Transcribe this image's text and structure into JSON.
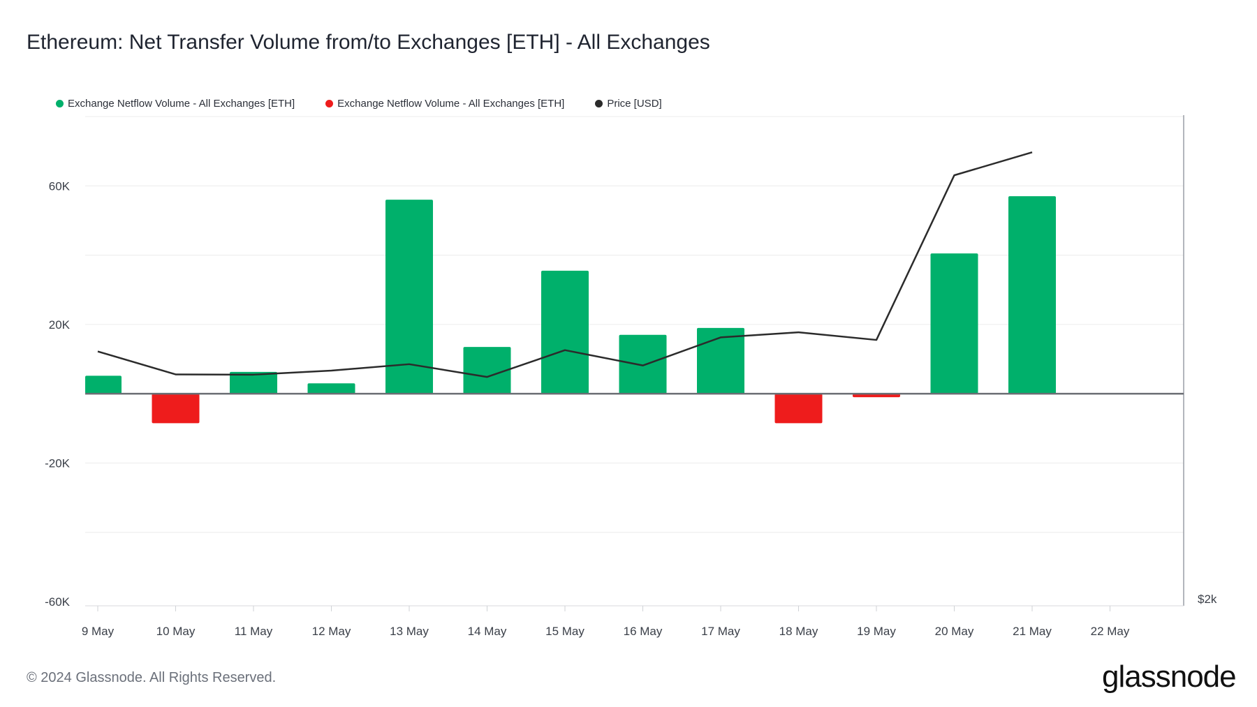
{
  "title": "Ethereum: Net Transfer Volume from/to Exchanges [ETH] - All Exchanges",
  "legend": [
    {
      "label": "Exchange Netflow Volume - All Exchanges [ETH]",
      "color": "#00b06b"
    },
    {
      "label": "Exchange Netflow Volume - All Exchanges [ETH]",
      "color": "#ee1c1c"
    },
    {
      "label": "Price [USD]",
      "color": "#2b2b2b"
    }
  ],
  "footer": {
    "copyright": "© 2024 Glassnode. All Rights Reserved.",
    "logo": "glassnode"
  },
  "chart_data": {
    "type": "bar",
    "title": "Ethereum: Net Transfer Volume from/to Exchanges [ETH] - All Exchanges",
    "xlabel": "",
    "ylabel": "",
    "categories": [
      "9 May",
      "10 May",
      "11 May",
      "12 May",
      "13 May",
      "14 May",
      "15 May",
      "16 May",
      "17 May",
      "18 May",
      "19 May",
      "20 May",
      "21 May",
      "22 May"
    ],
    "series": [
      {
        "name": "Exchange Netflow Volume - All Exchanges [ETH]",
        "type": "bar",
        "axis": "left",
        "color": "#00b06b",
        "color_negative": "#ee1c1c",
        "values": [
          5200,
          -8500,
          6300,
          3000,
          56000,
          13500,
          35500,
          17000,
          19000,
          -8500,
          -1000,
          40500,
          57000,
          null
        ]
      },
      {
        "name": "Price [USD]",
        "type": "line",
        "axis": "right",
        "color": "#2b2b2b",
        "values": [
          2980,
          2890,
          2889,
          2905,
          2930,
          2880,
          2985,
          2925,
          3035,
          3055,
          3025,
          3670,
          3760,
          null
        ]
      }
    ],
    "y_ticks": [
      "60K",
      "20K",
      "-20K",
      "-60K"
    ],
    "y_tick_values": [
      60000,
      20000,
      -20000,
      -60000
    ],
    "ylim": [
      -60000,
      80000
    ],
    "y2_tick": "$2k",
    "y2lim": [
      2000,
      3900
    ],
    "grid": true,
    "legend_position": "top-left"
  }
}
